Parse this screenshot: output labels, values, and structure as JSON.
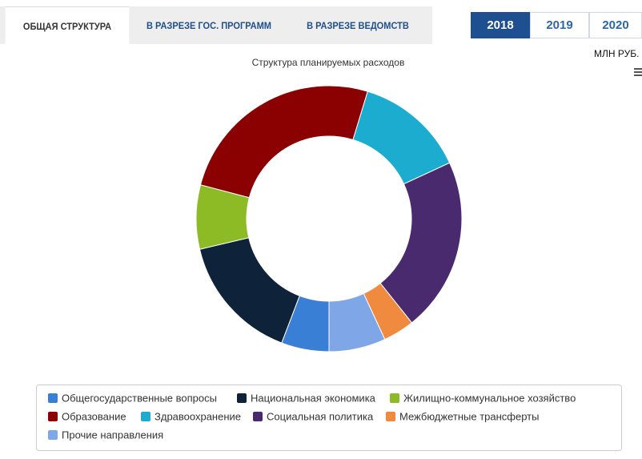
{
  "tabs": [
    "ОБЩАЯ СТРУКТУРА",
    "В РАЗРЕЗЕ ГОС. ПРОГРАММ",
    "В РАЗРЕЗЕ ВЕДОМСТВ"
  ],
  "years": [
    "2018",
    "2019",
    "2020"
  ],
  "unit": "МЛН РУБ.",
  "chart_data": {
    "type": "donut",
    "title": "Структура планируемых расходов",
    "categories": [
      "Общегосударственные вопросы",
      "Национальная экономика",
      "Жилищно-коммунальное хозяйство",
      "Образование",
      "Здравоохранение",
      "Социальная политика",
      "Межбюджетные трансферты",
      "Прочие направления"
    ],
    "values": [
      5.8,
      15.5,
      7.8,
      25.6,
      13.4,
      21.2,
      3.8,
      6.9
    ],
    "colors": [
      "#3a7fd6",
      "#0e2239",
      "#8dbb25",
      "#8b0000",
      "#1bacd0",
      "#4a2a6e",
      "#f08a3e",
      "#7fa6e6"
    ],
    "legend": "bottom"
  }
}
